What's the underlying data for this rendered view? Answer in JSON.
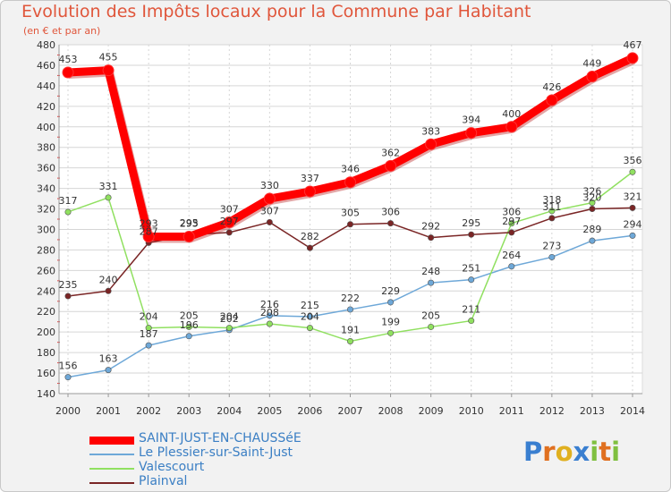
{
  "chart_data": {
    "type": "line",
    "title": "Evolution des Impôts locaux pour la Commune par Habitant",
    "subtitle": "(en € et par an)",
    "xlabel": "",
    "ylabel": "",
    "x": [
      "2000",
      "2001",
      "2002",
      "2003",
      "2004",
      "2005",
      "2006",
      "2007",
      "2008",
      "2009",
      "2010",
      "2011",
      "2012",
      "2013",
      "2014"
    ],
    "ylim": [
      140,
      480
    ],
    "yticks": [
      140,
      160,
      180,
      200,
      220,
      240,
      260,
      280,
      300,
      320,
      340,
      360,
      380,
      400,
      420,
      440,
      460,
      480
    ],
    "grid": true,
    "legend_position": "bottom-left",
    "series": [
      {
        "name": "SAINT-JUST-EN-CHAUSSéE",
        "color": "#ff0000",
        "emphasis": true,
        "values": [
          453,
          455,
          293,
          293,
          307,
          330,
          337,
          346,
          362,
          383,
          394,
          400,
          426,
          449,
          467
        ]
      },
      {
        "name": "Le Plessier-sur-Saint-Just",
        "color": "#6ea8d8",
        "emphasis": false,
        "values": [
          156,
          163,
          187,
          196,
          202,
          216,
          215,
          222,
          229,
          248,
          251,
          264,
          273,
          289,
          294
        ]
      },
      {
        "name": "Valescourt",
        "color": "#90e060",
        "emphasis": false,
        "values": [
          317,
          331,
          204,
          205,
          204,
          208,
          204,
          191,
          199,
          205,
          211,
          306,
          318,
          326,
          356
        ]
      },
      {
        "name": "Plainval",
        "color": "#7a2525",
        "emphasis": false,
        "values": [
          235,
          240,
          287,
          295,
          297,
          307,
          282,
          305,
          306,
          292,
          295,
          297,
          311,
          320,
          321
        ]
      }
    ]
  },
  "logo": {
    "letters": [
      "P",
      "r",
      "o",
      "x",
      "i",
      "t",
      "i"
    ],
    "colors": [
      "#3a7fd0",
      "#e07020",
      "#e0b020",
      "#3a7fd0",
      "#80c040",
      "#e07020",
      "#80c040"
    ]
  }
}
